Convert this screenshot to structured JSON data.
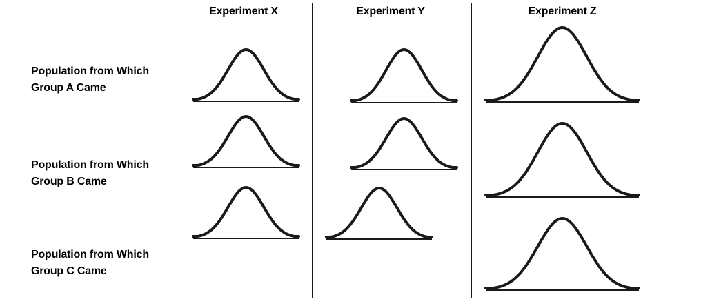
{
  "columns": [
    {
      "title": "Experiment X"
    },
    {
      "title": "Experiment Y"
    },
    {
      "title": "Experiment Z"
    }
  ],
  "rows": [
    {
      "line1": "Population from Which",
      "line2": "Group A Came"
    },
    {
      "line1": "Population from Which",
      "line2": "Group B Came"
    },
    {
      "line1": "Population from Which",
      "line2": "Group C Came"
    }
  ],
  "curve_color": "#1a1a1a"
}
